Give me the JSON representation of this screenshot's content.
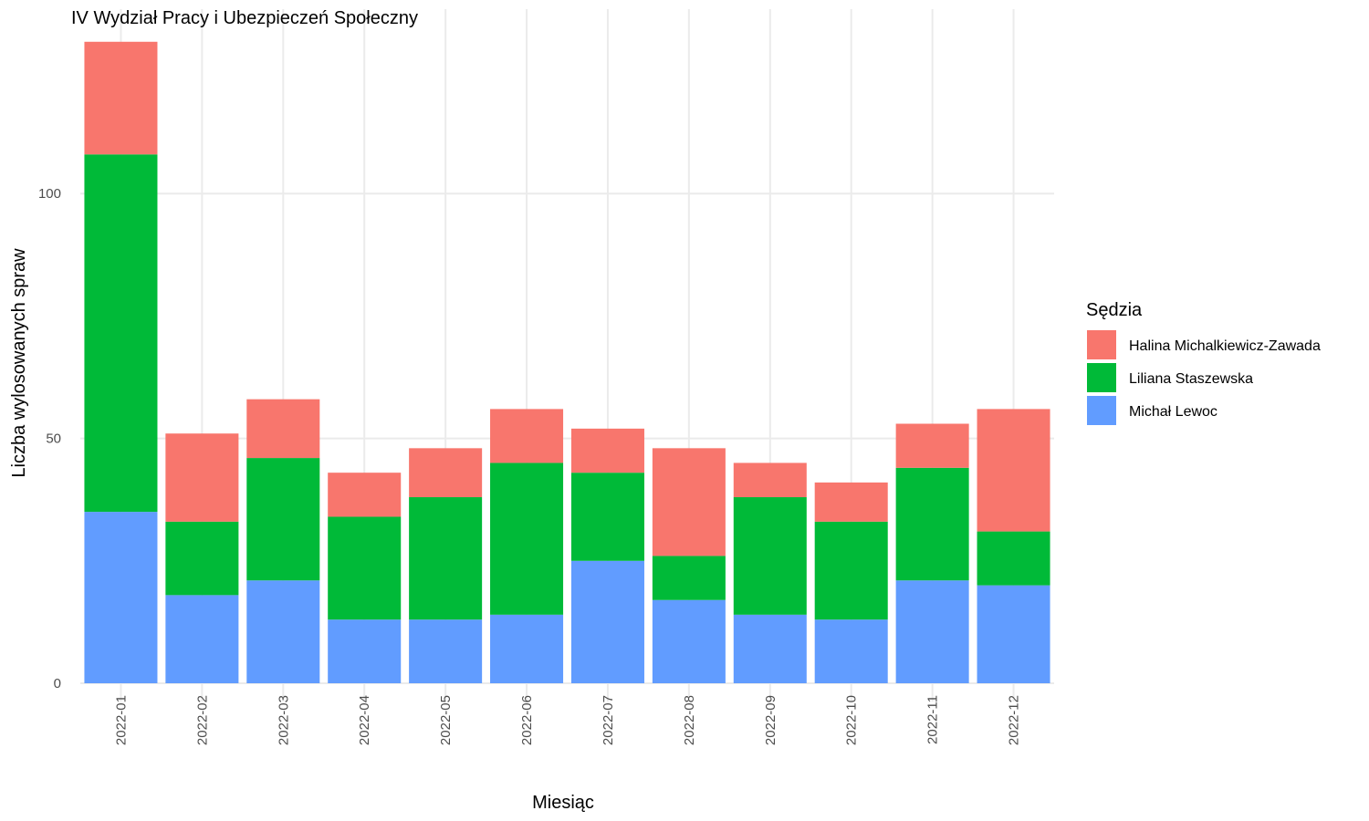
{
  "chart_data": {
    "type": "bar",
    "stacked": true,
    "title": "IV Wydział Pracy i Ubezpieczeń Społeczny",
    "xlabel": "Miesiąc",
    "ylabel": "Liczba wylosowanych spraw",
    "ylim": [
      0,
      131
    ],
    "yticks": [
      0,
      50,
      100
    ],
    "grid": true,
    "legend_title": "Sędzia",
    "legend_position": "right",
    "categories": [
      "2022-01",
      "2022-02",
      "2022-03",
      "2022-04",
      "2022-05",
      "2022-06",
      "2022-07",
      "2022-08",
      "2022-09",
      "2022-10",
      "2022-11",
      "2022-12"
    ],
    "series": [
      {
        "name": "Michał Lewoc",
        "color": "#619CFF",
        "values": [
          35,
          18,
          21,
          13,
          13,
          14,
          25,
          17,
          14,
          13,
          21,
          20
        ]
      },
      {
        "name": "Liliana Staszewska",
        "color": "#00BA38",
        "values": [
          73,
          15,
          25,
          21,
          25,
          31,
          18,
          9,
          24,
          20,
          23,
          11
        ]
      },
      {
        "name": "Halina Michalkiewicz-Zawada",
        "color": "#F8766D",
        "values": [
          23,
          18,
          12,
          9,
          10,
          11,
          9,
          22,
          7,
          8,
          9,
          25
        ]
      }
    ],
    "legend_order": [
      "Halina Michalkiewicz-Zawada",
      "Liliana Staszewska",
      "Michał Lewoc"
    ]
  }
}
